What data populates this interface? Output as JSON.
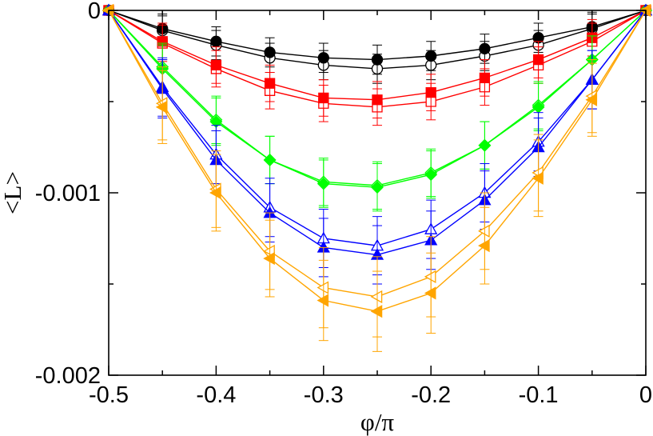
{
  "chart_data": {
    "type": "line",
    "title": "",
    "xlabel": "φ/π",
    "ylabel": "<L>",
    "xlim": [
      -0.5,
      0
    ],
    "ylim": [
      -0.002,
      0
    ],
    "x_ticks": [
      -0.5,
      -0.4,
      -0.3,
      -0.2,
      -0.1,
      0
    ],
    "x_tick_labels": [
      "-0.5",
      "-0.4",
      "-0.3",
      "-0.2",
      "-0.1",
      "0"
    ],
    "y_ticks": [
      0,
      -0.001,
      -0.002
    ],
    "y_tick_labels": [
      "0",
      "-0.001",
      "-0.002"
    ],
    "grid": false,
    "legend": "none",
    "x": [
      -0.5,
      -0.45,
      -0.4,
      -0.35,
      -0.3,
      -0.25,
      -0.2,
      -0.15,
      -0.1,
      -0.05,
      0
    ],
    "series": [
      {
        "name": "black-open",
        "color": "#000000",
        "marker": "circle",
        "filled": false,
        "values": [
          0,
          -0.00011,
          -0.00019,
          -0.00026,
          -0.0003,
          -0.00032,
          -0.0003,
          -0.00025,
          -0.00019,
          -0.0001,
          0
        ],
        "errors": [
          0,
          8e-05,
          8e-05,
          8e-05,
          8e-05,
          8e-05,
          8e-05,
          8e-05,
          8e-05,
          8e-05,
          0
        ]
      },
      {
        "name": "black-filled",
        "color": "#000000",
        "marker": "circle",
        "filled": true,
        "values": [
          0,
          -0.0001,
          -0.00017,
          -0.00023,
          -0.00026,
          -0.00027,
          -0.00025,
          -0.00021,
          -0.00015,
          -9e-05,
          0
        ],
        "errors": [
          0,
          8e-05,
          8e-05,
          8e-05,
          8e-05,
          8e-05,
          8e-05,
          8e-05,
          8e-05,
          8e-05,
          0
        ]
      },
      {
        "name": "red-open",
        "color": "#ff0000",
        "marker": "square",
        "filled": false,
        "values": [
          0,
          -0.00018,
          -0.00032,
          -0.00044,
          -0.00051,
          -0.00053,
          -0.0005,
          -0.00042,
          -0.0003,
          -0.00017,
          0
        ],
        "errors": [
          0,
          0.0001,
          0.0001,
          0.0001,
          0.0001,
          0.0001,
          0.0001,
          0.0001,
          0.0001,
          0.0001,
          0
        ]
      },
      {
        "name": "red-filled",
        "color": "#ff0000",
        "marker": "square",
        "filled": true,
        "values": [
          0,
          -0.00017,
          -0.0003,
          -0.0004,
          -0.00048,
          -0.00049,
          -0.00045,
          -0.00037,
          -0.00027,
          -0.00015,
          0
        ],
        "errors": [
          0,
          0.0001,
          0.0001,
          0.0001,
          0.0001,
          0.0001,
          0.0001,
          0.0001,
          0.0001,
          0.0001,
          0
        ]
      },
      {
        "name": "green-open",
        "color": "#00ff00",
        "marker": "diamond",
        "filled": false,
        "values": [
          0,
          -0.00031,
          -0.0006,
          -0.00082,
          -0.00094,
          -0.00096,
          -0.00089,
          -0.00074,
          -0.00052,
          -0.00027,
          0
        ],
        "errors": [
          0,
          0.00013,
          0.00013,
          0.00013,
          0.00013,
          0.00013,
          0.00013,
          0.00013,
          0.00013,
          0.00013,
          0
        ]
      },
      {
        "name": "green-filled",
        "color": "#00ff00",
        "marker": "diamond",
        "filled": true,
        "values": [
          0,
          -0.00032,
          -0.00061,
          -0.00082,
          -0.00095,
          -0.00097,
          -0.0009,
          -0.00074,
          -0.00053,
          -0.00027,
          0
        ],
        "errors": [
          0,
          0.00013,
          0.00013,
          0.00013,
          0.00013,
          0.00013,
          0.00013,
          0.00013,
          0.00013,
          0.00013,
          0
        ]
      },
      {
        "name": "blue-open",
        "color": "#0000ff",
        "marker": "triangle-up",
        "filled": false,
        "values": [
          0,
          -0.00042,
          -0.00079,
          -0.00108,
          -0.00125,
          -0.00129,
          -0.0012,
          -0.001,
          -0.00072,
          -0.00038,
          0
        ],
        "errors": [
          0,
          0.00016,
          0.00016,
          0.00016,
          0.00016,
          0.00016,
          0.00016,
          0.00016,
          0.00016,
          0.00016,
          0
        ]
      },
      {
        "name": "blue-filled",
        "color": "#0000ff",
        "marker": "triangle-up",
        "filled": true,
        "values": [
          0,
          -0.00043,
          -0.00082,
          -0.00111,
          -0.0013,
          -0.00134,
          -0.00126,
          -0.00104,
          -0.00075,
          -0.00038,
          0
        ],
        "errors": [
          0,
          0.00016,
          0.00016,
          0.00016,
          0.00016,
          0.00016,
          0.00016,
          0.00016,
          0.00016,
          0.00016,
          0
        ]
      },
      {
        "name": "orange-open",
        "color": "#ffa500",
        "marker": "triangle-left",
        "filled": false,
        "values": [
          0,
          -0.00051,
          -0.00098,
          -0.00132,
          -0.00152,
          -0.00157,
          -0.00146,
          -0.00121,
          -0.00089,
          -0.00047,
          0
        ],
        "errors": [
          0,
          0.0002,
          0.00021,
          0.00021,
          0.00022,
          0.00022,
          0.00022,
          0.00021,
          0.00021,
          0.0002,
          0
        ]
      },
      {
        "name": "orange-filled",
        "color": "#ffa500",
        "marker": "triangle-left",
        "filled": true,
        "values": [
          0,
          -0.00053,
          -0.001,
          -0.00136,
          -0.00159,
          -0.00165,
          -0.00155,
          -0.00129,
          -0.00092,
          -0.00049,
          0
        ],
        "errors": [
          0,
          0.0002,
          0.00021,
          0.00021,
          0.00022,
          0.00022,
          0.00022,
          0.00021,
          0.00021,
          0.0002,
          0
        ]
      }
    ]
  }
}
